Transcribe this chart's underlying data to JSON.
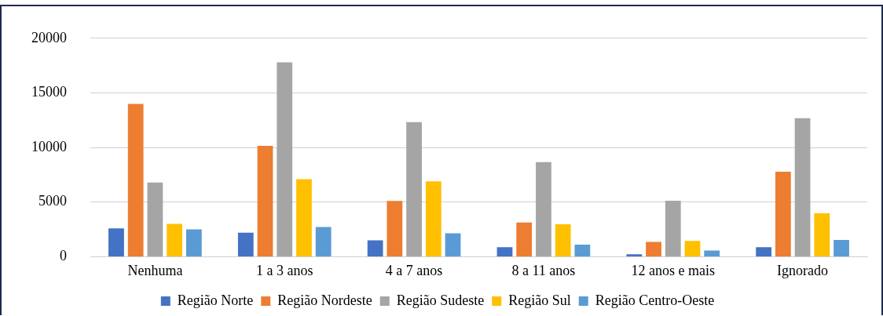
{
  "chart_data": {
    "type": "bar",
    "categories": [
      "Nenhuma",
      "1 a 3 anos",
      "4 a 7 anos",
      "8 a 11 anos",
      "12 anos e mais",
      "Ignorado"
    ],
    "series": [
      {
        "name": "Região Norte",
        "color": "#4472c4",
        "values": [
          2600,
          2200,
          1500,
          870,
          220,
          870
        ]
      },
      {
        "name": "Região Nordeste",
        "color": "#ed7d31",
        "values": [
          14000,
          10150,
          5100,
          3140,
          1360,
          7780
        ]
      },
      {
        "name": "Região Sudeste",
        "color": "#a5a5a5",
        "values": [
          6800,
          17800,
          12330,
          8670,
          5120,
          12680
        ]
      },
      {
        "name": "Região Sul",
        "color": "#ffc000",
        "values": [
          3000,
          7100,
          6900,
          2980,
          1440,
          3980
        ]
      },
      {
        "name": "Região Centro-Oeste",
        "color": "#5b9bd5",
        "values": [
          2500,
          2720,
          2150,
          1110,
          570,
          1540
        ]
      }
    ],
    "ylim": [
      0,
      20000
    ],
    "yticks": [
      0,
      5000,
      10000,
      15000,
      20000
    ],
    "grid": "y",
    "legend": "bottom"
  }
}
